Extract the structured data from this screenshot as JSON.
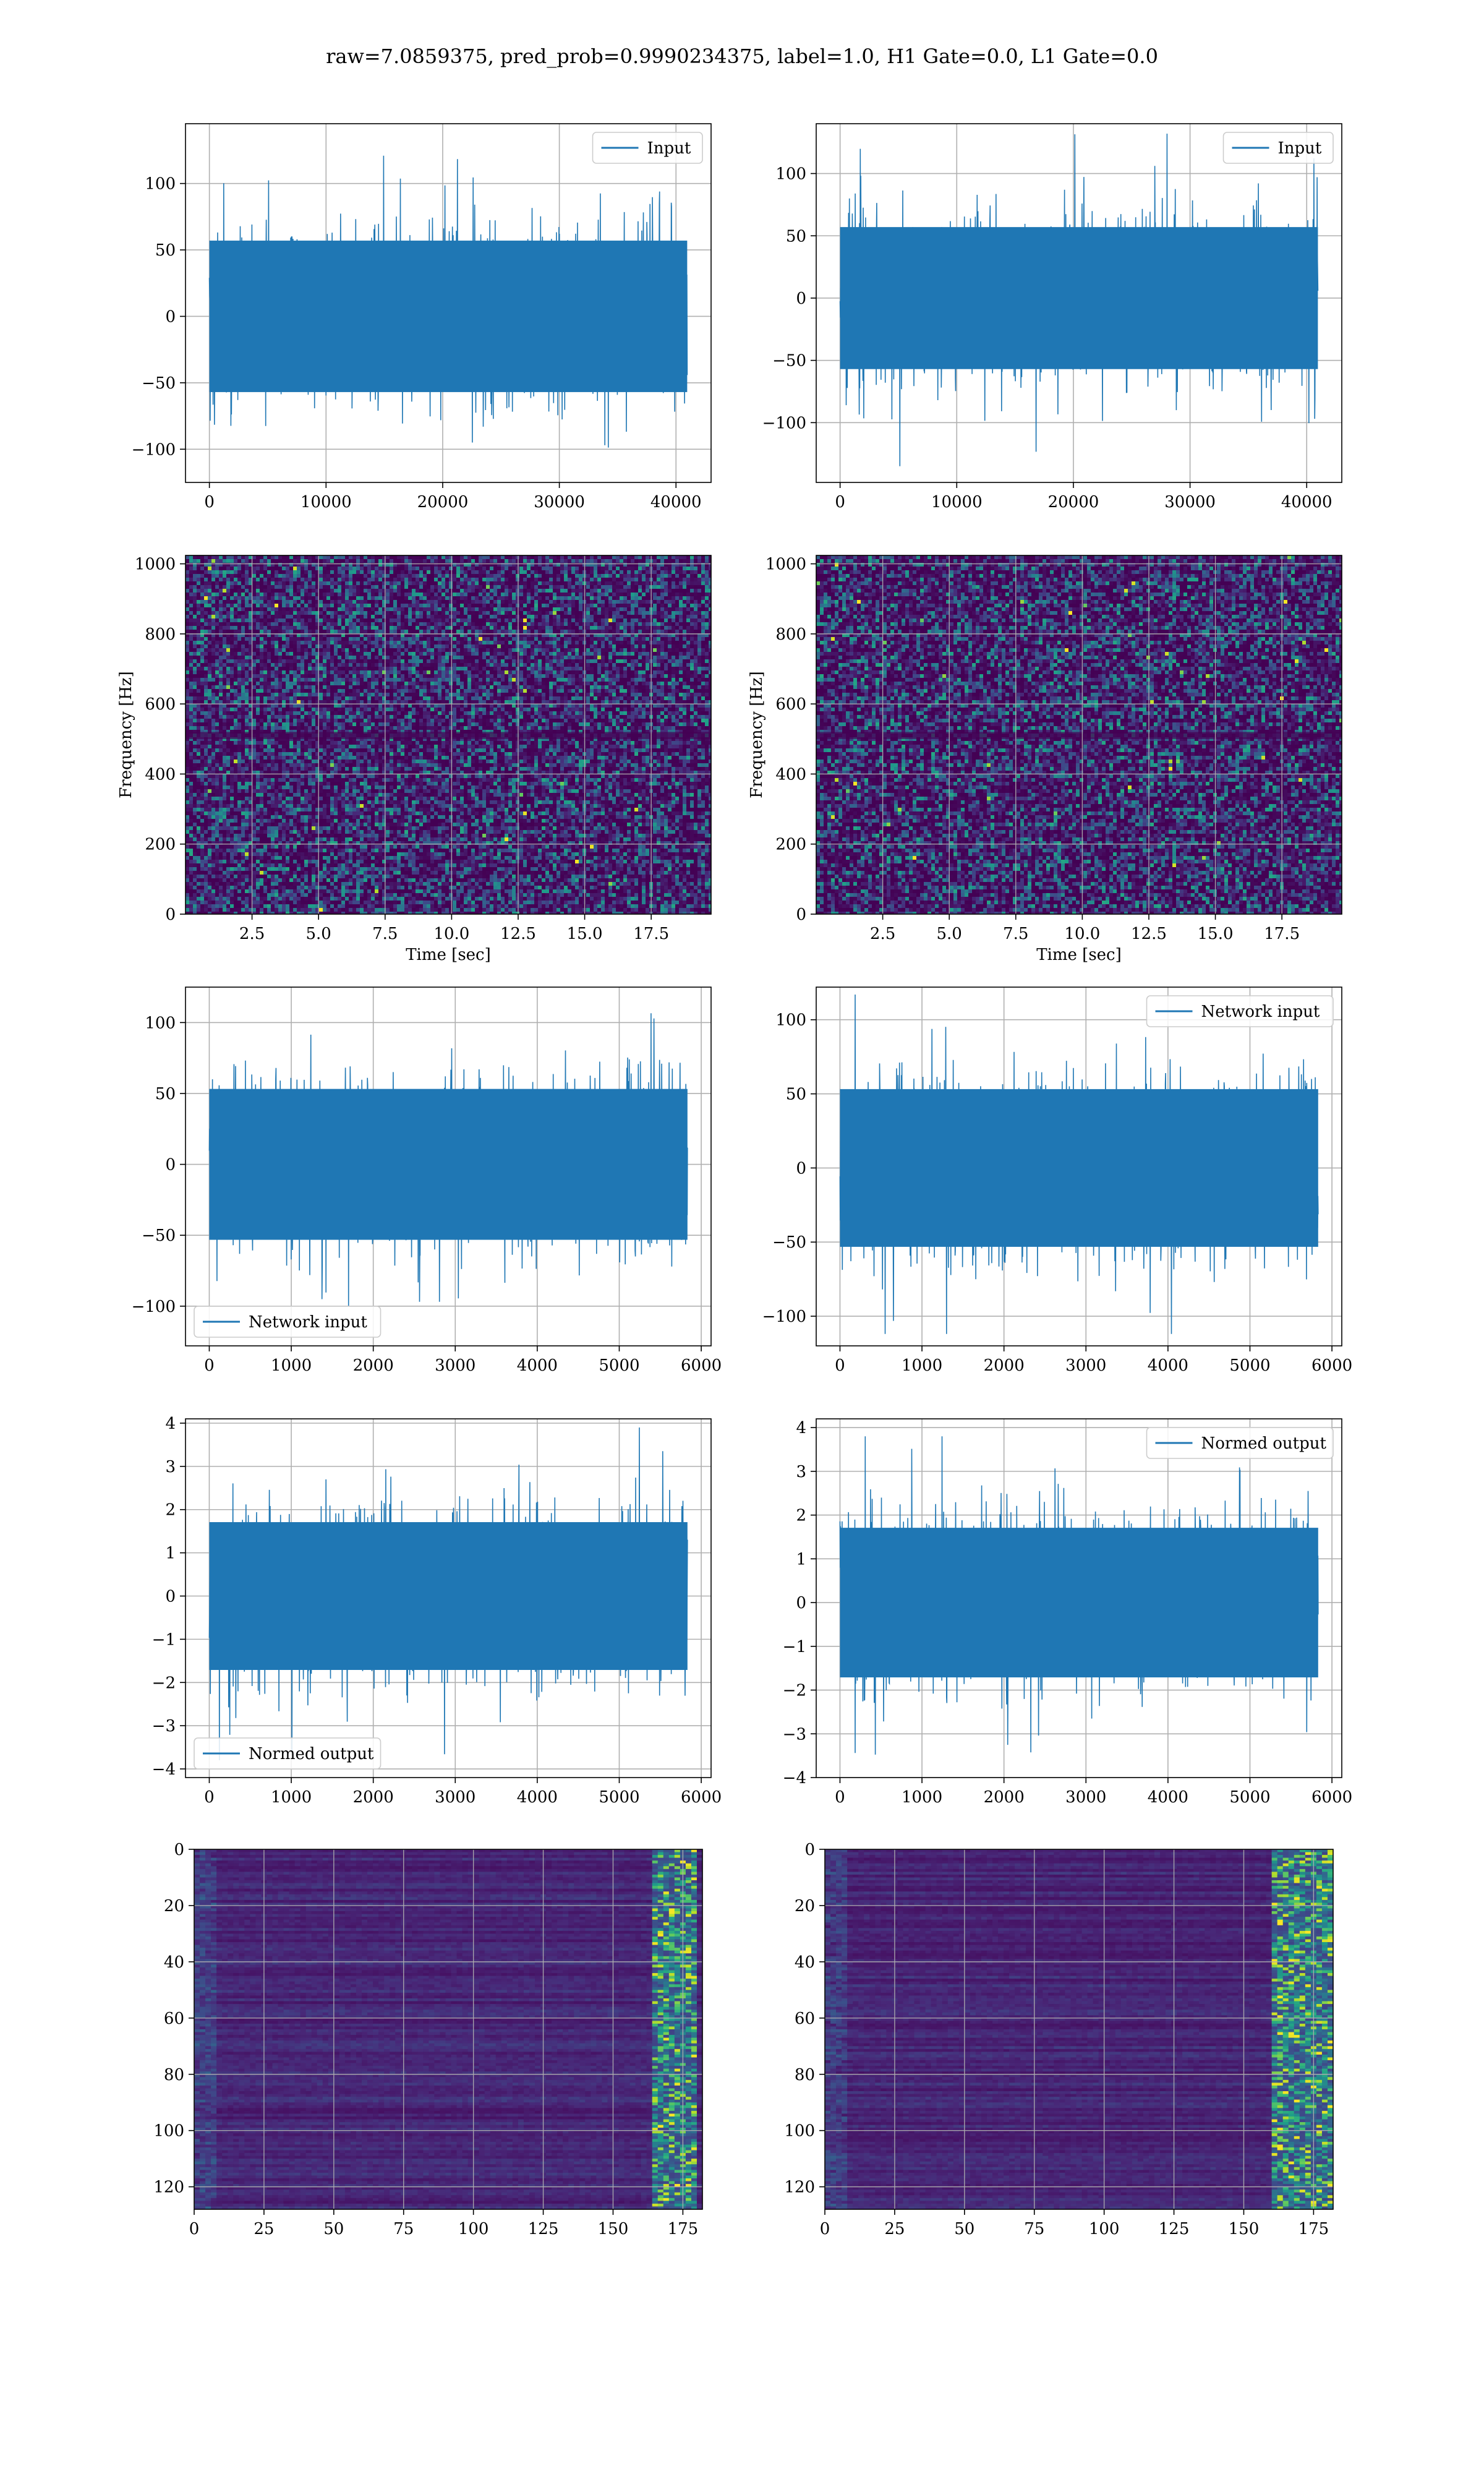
{
  "suptitle": "raw=7.0859375, pred_prob=0.9990234375, label=1.0, H1 Gate=0.0, L1 Gate=0.0",
  "colors": {
    "series": "#1f77b4",
    "grid": "#b0b0b0",
    "viridis_low": "#440154",
    "viridis_high": "#fde725"
  },
  "chart_data": [
    {
      "id": "input-h1",
      "type": "line",
      "xlim": [
        -2048,
        43008
      ],
      "ylim": [
        -125,
        145
      ],
      "xticks": [
        0,
        10000,
        20000,
        30000,
        40000
      ],
      "yticks": [
        -100,
        -50,
        0,
        50,
        100
      ],
      "grid": true,
      "legend": {
        "placement": "upper-right",
        "entries": [
          "Input"
        ]
      },
      "signal": {
        "length": 40960,
        "std": 30,
        "max": 135,
        "min": -118
      }
    },
    {
      "id": "input-l1",
      "type": "line",
      "xlim": [
        -2048,
        43008
      ],
      "ylim": [
        -148,
        140
      ],
      "xticks": [
        0,
        10000,
        20000,
        30000,
        40000
      ],
      "yticks": [
        -100,
        -50,
        0,
        50,
        100
      ],
      "grid": true,
      "legend": {
        "placement": "upper-right",
        "entries": [
          "Input"
        ]
      },
      "signal": {
        "length": 40960,
        "std": 30,
        "max": 132,
        "min": -135
      }
    },
    {
      "id": "spectrogram-h1",
      "type": "heatmap",
      "xlim": [
        0,
        19.75
      ],
      "ylim": [
        0,
        1024
      ],
      "xticks": [
        2.5,
        5.0,
        7.5,
        10.0,
        12.5,
        15.0,
        17.5
      ],
      "yticks": [
        0,
        200,
        400,
        600,
        800,
        1000
      ],
      "xlabel": "Time [sec]",
      "ylabel": "Frequency [Hz]",
      "grid": true,
      "colormap": "viridis"
    },
    {
      "id": "spectrogram-l1",
      "type": "heatmap",
      "xlim": [
        0,
        19.75
      ],
      "ylim": [
        0,
        1024
      ],
      "xticks": [
        2.5,
        5.0,
        7.5,
        10.0,
        12.5,
        15.0,
        17.5
      ],
      "yticks": [
        0,
        200,
        400,
        600,
        800,
        1000
      ],
      "xlabel": "Time [sec]",
      "ylabel": "Frequency [Hz]",
      "grid": true,
      "colormap": "viridis"
    },
    {
      "id": "network-input-h1",
      "type": "line",
      "xlim": [
        -290,
        6120
      ],
      "ylim": [
        -128,
        125
      ],
      "xticks": [
        0,
        1000,
        2000,
        3000,
        4000,
        5000,
        6000
      ],
      "yticks": [
        -100,
        -50,
        0,
        50,
        100
      ],
      "grid": true,
      "legend": {
        "placement": "lower-left",
        "entries": [
          "Network input"
        ]
      },
      "signal": {
        "length": 5832,
        "std": 28,
        "max": 115,
        "min": -118
      }
    },
    {
      "id": "network-input-l1",
      "type": "line",
      "xlim": [
        -290,
        6120
      ],
      "ylim": [
        -120,
        122
      ],
      "xticks": [
        0,
        1000,
        2000,
        3000,
        4000,
        5000,
        6000
      ],
      "yticks": [
        -100,
        -50,
        0,
        50,
        100
      ],
      "grid": true,
      "legend": {
        "placement": "upper-right",
        "entries": [
          "Network input"
        ]
      },
      "signal": {
        "length": 5832,
        "std": 28,
        "max": 117,
        "min": -112
      }
    },
    {
      "id": "normed-output-h1",
      "type": "line",
      "xlim": [
        -290,
        6120
      ],
      "ylim": [
        -4.2,
        4.1
      ],
      "xticks": [
        0,
        1000,
        2000,
        3000,
        4000,
        5000,
        6000
      ],
      "yticks": [
        -4,
        -3,
        -2,
        -1,
        0,
        1,
        2,
        3,
        4
      ],
      "grid": true,
      "legend": {
        "placement": "lower-left",
        "entries": [
          "Normed output"
        ]
      },
      "signal": {
        "length": 5832,
        "std": 0.9,
        "max": 3.9,
        "min": -3.8
      }
    },
    {
      "id": "normed-output-l1",
      "type": "line",
      "xlim": [
        -290,
        6120
      ],
      "ylim": [
        -4.0,
        4.2
      ],
      "xticks": [
        0,
        1000,
        2000,
        3000,
        4000,
        5000,
        6000
      ],
      "yticks": [
        -4,
        -3,
        -2,
        -1,
        0,
        1,
        2,
        3,
        4
      ],
      "grid": true,
      "legend": {
        "placement": "upper-right",
        "entries": [
          "Normed output"
        ]
      },
      "signal": {
        "length": 5832,
        "std": 0.9,
        "max": 3.8,
        "min": -3.6
      }
    },
    {
      "id": "feature-map-h1",
      "type": "heatmap",
      "xlim": [
        0,
        182
      ],
      "ylim": [
        128,
        0
      ],
      "xticks": [
        0,
        25,
        50,
        75,
        100,
        125,
        150,
        175
      ],
      "yticks": [
        0,
        20,
        40,
        60,
        80,
        100,
        120
      ],
      "grid": true,
      "colormap": "viridis",
      "hot_columns": [
        163,
        178
      ]
    },
    {
      "id": "feature-map-l1",
      "type": "heatmap",
      "xlim": [
        0,
        182
      ],
      "ylim": [
        128,
        0
      ],
      "xticks": [
        0,
        25,
        50,
        75,
        100,
        125,
        150,
        175
      ],
      "yticks": [
        0,
        20,
        40,
        60,
        80,
        100,
        120
      ],
      "grid": true,
      "colormap": "viridis",
      "hot_columns": [
        160,
        180
      ]
    }
  ]
}
